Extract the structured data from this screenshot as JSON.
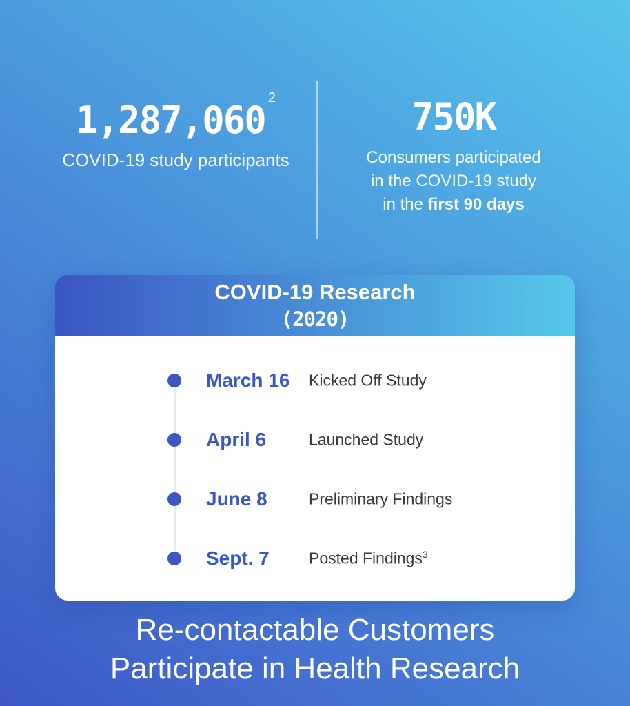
{
  "stats": {
    "left": {
      "value": "1,287,060",
      "footnote": "2",
      "label": "COVID-19 study participants"
    },
    "right": {
      "value": "750K",
      "desc_line1": "Consumers participated",
      "desc_line2": "in the COVID-19 study",
      "desc_line3_normal": "in the",
      "desc_line3_bold": "first 90 days"
    }
  },
  "card": {
    "title_line1": "COVID-19 Research",
    "title_line2": "(2020)",
    "timeline": [
      {
        "date": "March 16",
        "event": "Kicked Off Study",
        "event_sup": ""
      },
      {
        "date": "April 6",
        "event": "Launched Study",
        "event_sup": ""
      },
      {
        "date": "June 8",
        "event": "Preliminary Findings",
        "event_sup": ""
      },
      {
        "date": "Sept. 7",
        "event": "Posted Findings",
        "event_sup": "3"
      }
    ]
  },
  "headline": {
    "line1": "Re-contactable Customers",
    "line2": "Participate in Health Research"
  },
  "colors": {
    "bg-start": "#3E57C8",
    "bg-end": "#55C6EC",
    "header-start": "#3C55C4",
    "header-end": "#55C8EA",
    "accent": "#3D56C4",
    "accent-date": "#3D56C9",
    "event-text": "#3B3B3D",
    "card-bg": "#FFFFFF",
    "text-white": "#FFFFFF"
  }
}
